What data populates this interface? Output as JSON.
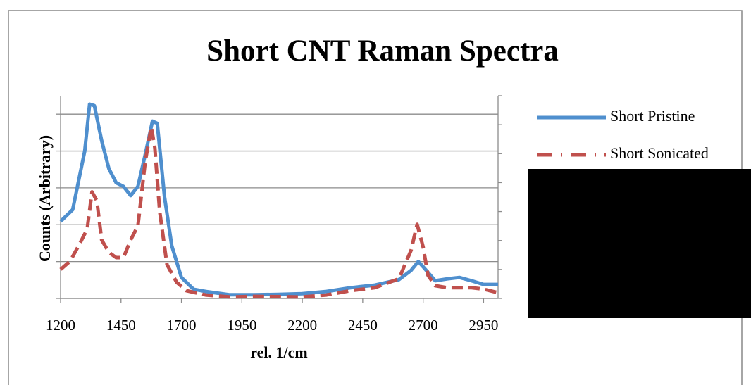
{
  "chart_data": {
    "type": "line",
    "title": "Short CNT Raman Spectra",
    "x_label": "rel. 1/cm",
    "y_label": "Counts (Arbitrary)",
    "xlim": [
      1200,
      3010
    ],
    "xticks": [
      1200,
      1450,
      1700,
      1950,
      2200,
      2450,
      2700,
      2950
    ],
    "ylim": [
      0,
      5.5
    ],
    "yticks": [
      0,
      1,
      2,
      3,
      4,
      5
    ],
    "y2lim": [
      0,
      7
    ],
    "y2ticks": [
      0,
      1,
      2,
      3,
      4,
      5,
      6,
      7
    ],
    "grid": true,
    "legend": "right",
    "series": [
      {
        "name": "Short Pristine",
        "color": "#4f8fce",
        "x": [
          1200,
          1250,
          1300,
          1320,
          1340,
          1370,
          1400,
          1430,
          1460,
          1490,
          1520,
          1550,
          1580,
          1600,
          1630,
          1660,
          1700,
          1750,
          1800,
          1900,
          2000,
          2100,
          2200,
          2300,
          2400,
          2500,
          2600,
          2650,
          2680,
          2700,
          2750,
          2800,
          2850,
          2900,
          2950,
          3010
        ],
        "values": [
          2.09,
          2.41,
          4.0,
          5.27,
          5.23,
          4.28,
          3.52,
          3.14,
          3.04,
          2.79,
          3.04,
          3.9,
          4.81,
          4.75,
          2.76,
          1.43,
          0.57,
          0.25,
          0.19,
          0.1,
          0.1,
          0.11,
          0.13,
          0.19,
          0.29,
          0.36,
          0.51,
          0.76,
          1.0,
          0.86,
          0.48,
          0.53,
          0.57,
          0.48,
          0.38,
          0.38
        ]
      },
      {
        "name": "Short Sonicated",
        "color": "#c0504d",
        "axis": "y2",
        "x": [
          1200,
          1240,
          1280,
          1310,
          1330,
          1350,
          1370,
          1400,
          1430,
          1460,
          1490,
          1520,
          1550,
          1575,
          1590,
          1610,
          1640,
          1680,
          1720,
          1800,
          1900,
          2000,
          2200,
          2300,
          2400,
          2500,
          2600,
          2650,
          2675,
          2700,
          2720,
          2750,
          2800,
          2900,
          2950,
          3010
        ],
        "values": [
          1.0,
          1.29,
          1.9,
          2.39,
          3.68,
          3.37,
          2.02,
          1.59,
          1.41,
          1.41,
          2.02,
          2.51,
          4.71,
          5.93,
          5.2,
          3.0,
          1.17,
          0.56,
          0.27,
          0.12,
          0.05,
          0.07,
          0.05,
          0.12,
          0.27,
          0.37,
          0.68,
          1.66,
          2.56,
          1.78,
          0.8,
          0.44,
          0.37,
          0.37,
          0.32,
          0.2
        ]
      }
    ]
  }
}
